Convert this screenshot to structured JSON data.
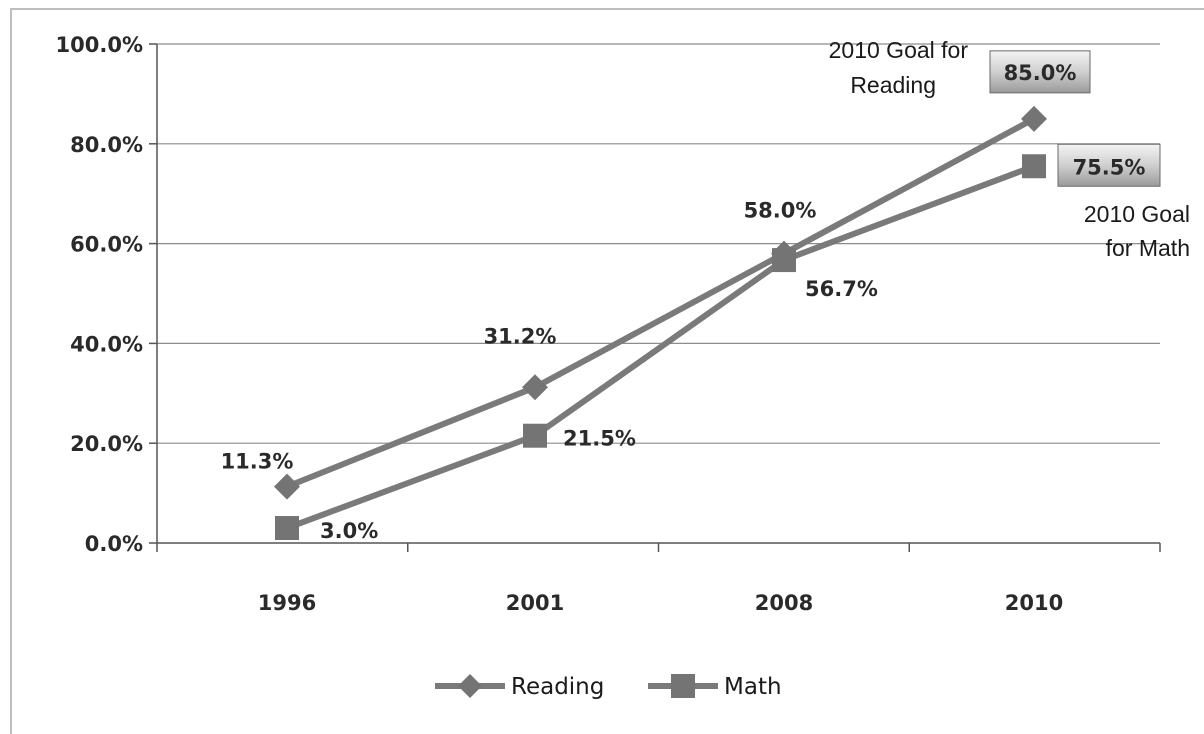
{
  "chart_data": {
    "type": "line",
    "categories": [
      "1996",
      "2001",
      "2008",
      "2010"
    ],
    "ylim": [
      0,
      100
    ],
    "yticks": [
      "0.0%",
      "20.0%",
      "40.0%",
      "60.0%",
      "80.0%",
      "100.0%"
    ],
    "grid": true,
    "legend_position": "bottom",
    "series": [
      {
        "name": "Reading",
        "marker": "diamond",
        "values": [
          11.3,
          31.2,
          58.0,
          85.0
        ],
        "labels": [
          "11.3%",
          "31.2%",
          "58.0%",
          "85.0%"
        ]
      },
      {
        "name": "Math",
        "marker": "square",
        "values": [
          3.0,
          21.5,
          56.7,
          75.5
        ],
        "labels": [
          "3.0%",
          "21.5%",
          "56.7%",
          "75.5%"
        ]
      }
    ],
    "annotations": {
      "reading_goal": [
        "2010 Goal for",
        "Reading"
      ],
      "math_goal": [
        "2010 Goal",
        "for Math"
      ]
    },
    "colors": {
      "line": "#7a7a7a",
      "marker": "#747474",
      "grid": "#8c8c8c"
    }
  }
}
